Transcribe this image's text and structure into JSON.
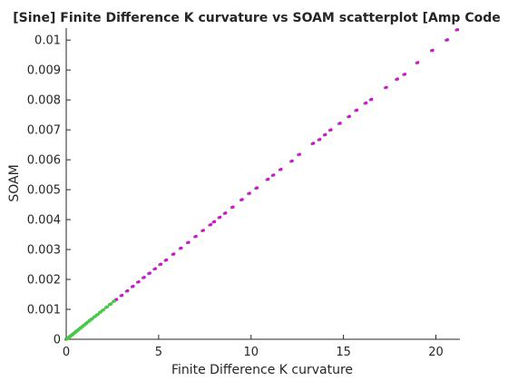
{
  "chart_data": {
    "type": "scatter",
    "title": "[Sine] Finite Difference K curvature vs SOAM scatterplot [Amp Code",
    "xlabel": "Finite Difference K curvature",
    "ylabel": "SOAM",
    "xlim": [
      0,
      21.3
    ],
    "ylim": [
      0,
      0.0104
    ],
    "xticks": [
      0,
      5,
      10,
      15,
      20
    ],
    "xtick_labels": [
      "0",
      "5",
      "10",
      "15",
      "20"
    ],
    "yticks": [
      0,
      0.001,
      0.002,
      0.003,
      0.004,
      0.005,
      0.006,
      0.007,
      0.008,
      0.009,
      0.01
    ],
    "ytick_labels": [
      "0",
      "0.001",
      "0.002",
      "0.003",
      "0.004",
      "0.005",
      "0.006",
      "0.007",
      "0.008",
      "0.009",
      "0.01"
    ],
    "grid": false,
    "legend": false,
    "colors": {
      "magenta": "#e600e6",
      "green": "#3fd23f",
      "gray": "#7a7a7a",
      "axis": "#262626"
    },
    "series": [
      {
        "color": "magenta",
        "x": [
          21.15,
          20.6,
          19.8,
          19.0,
          18.3,
          17.9,
          17.3,
          16.5,
          16.2,
          15.7,
          15.3,
          14.8,
          14.3,
          14.0,
          13.7,
          13.35,
          12.6,
          12.2,
          11.6,
          11.2,
          10.9,
          10.3,
          9.9,
          9.5,
          9.0,
          8.6,
          8.3,
          8.0,
          7.8,
          7.4,
          7.0,
          6.6,
          6.2,
          5.8,
          5.4,
          5.1,
          4.8,
          4.5,
          4.2,
          3.9,
          3.6,
          3.3,
          3.0,
          2.7,
          2.4
        ],
        "y": [
          0.01035,
          0.01001,
          0.00966,
          0.00925,
          0.00886,
          0.0087,
          0.00842,
          0.00802,
          0.0079,
          0.00766,
          0.00745,
          0.00722,
          0.007,
          0.00684,
          0.00668,
          0.00655,
          0.00618,
          0.00596,
          0.00568,
          0.00549,
          0.00535,
          0.00506,
          0.00488,
          0.00467,
          0.00442,
          0.00422,
          0.00408,
          0.00393,
          0.00383,
          0.00364,
          0.00344,
          0.00324,
          0.00305,
          0.00285,
          0.00265,
          0.00251,
          0.00236,
          0.00221,
          0.00207,
          0.00192,
          0.00177,
          0.00162,
          0.00147,
          0.00133,
          0.00118
        ]
      },
      {
        "color": "green",
        "x": [
          2.6,
          2.4,
          2.2,
          2.0,
          1.85,
          1.7,
          1.55,
          1.4,
          1.3,
          1.2,
          1.1,
          1.0,
          0.9,
          0.8,
          0.7,
          0.62,
          0.55,
          0.48,
          0.42,
          0.36,
          0.3,
          0.25,
          0.2,
          0.15,
          0.1,
          0.06,
          0.03
        ],
        "y": [
          0.00128,
          0.00118,
          0.00108,
          0.00098,
          0.00091,
          0.00083,
          0.00076,
          0.00069,
          0.00064,
          0.00059,
          0.00054,
          0.00049,
          0.00044,
          0.00039,
          0.00034,
          0.0003,
          0.00027,
          0.00023,
          0.0002,
          0.00017,
          0.00014,
          0.00012,
          9e-05,
          7e-05,
          5e-05,
          3e-05,
          1e-05
        ]
      }
    ]
  }
}
